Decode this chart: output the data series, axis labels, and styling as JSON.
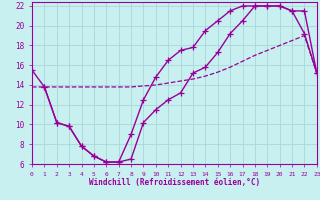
{
  "xlabel": "Windchill (Refroidissement éolien,°C)",
  "bg_color": "#c8f0f0",
  "grid_color": "#a8d8d8",
  "line_color": "#990099",
  "xlim": [
    0,
    23
  ],
  "ylim": [
    6,
    22.4
  ],
  "xticks": [
    0,
    1,
    2,
    3,
    4,
    5,
    6,
    7,
    8,
    9,
    10,
    11,
    12,
    13,
    14,
    15,
    16,
    17,
    18,
    19,
    20,
    21,
    22,
    23
  ],
  "yticks": [
    6,
    8,
    10,
    12,
    14,
    16,
    18,
    20,
    22
  ],
  "line1_x": [
    0,
    1,
    2,
    3,
    4,
    5,
    6,
    7,
    8,
    9,
    10,
    11,
    12,
    13,
    14,
    15,
    16,
    17,
    18,
    19,
    20,
    21,
    22,
    23
  ],
  "line1_y": [
    15.5,
    13.8,
    10.2,
    9.8,
    7.8,
    6.8,
    6.2,
    6.2,
    6.5,
    10.2,
    11.5,
    12.5,
    13.2,
    15.2,
    15.8,
    17.3,
    19.2,
    20.5,
    22.0,
    22.0,
    22.0,
    21.5,
    19.2,
    15.2
  ],
  "line2_x": [
    0,
    1,
    2,
    3,
    4,
    5,
    6,
    7,
    8,
    9,
    10,
    11,
    12,
    13,
    14,
    15,
    16,
    17,
    18,
    19,
    20,
    21,
    22,
    23
  ],
  "line2_y": [
    13.8,
    13.8,
    13.8,
    13.8,
    13.8,
    13.8,
    13.8,
    13.8,
    13.8,
    13.9,
    14.0,
    14.2,
    14.4,
    14.6,
    14.9,
    15.3,
    15.8,
    16.4,
    17.0,
    17.5,
    18.0,
    18.5,
    19.0,
    15.2
  ],
  "line3_x": [
    1,
    2,
    3,
    4,
    5,
    6,
    7,
    8,
    9,
    10,
    11,
    12,
    13,
    14,
    15,
    16,
    17,
    18,
    19,
    20,
    21,
    22,
    23
  ],
  "line3_y": [
    13.8,
    10.2,
    9.8,
    7.8,
    6.8,
    6.2,
    6.2,
    9.0,
    12.5,
    14.8,
    16.5,
    17.5,
    17.8,
    19.5,
    20.5,
    21.5,
    22.0,
    22.0,
    22.0,
    22.0,
    21.5,
    21.5,
    15.2
  ]
}
